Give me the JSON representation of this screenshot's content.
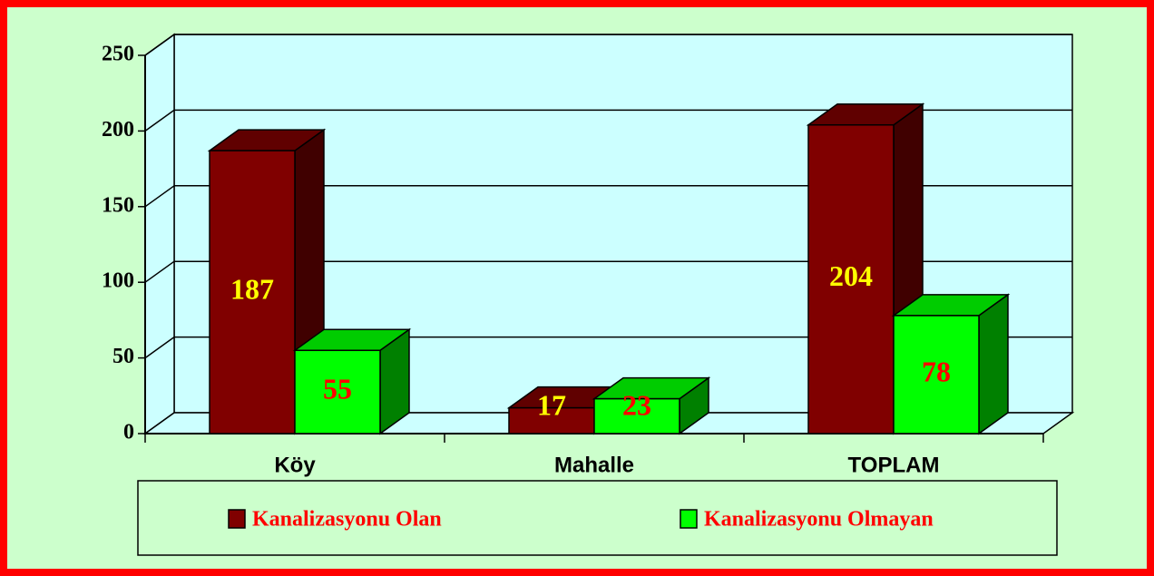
{
  "chart_data": {
    "type": "bar3d",
    "categories": [
      "Köy",
      "Mahalle",
      "TOPLAM"
    ],
    "series": [
      {
        "name": "Kanalizasyonu Olan",
        "color": "#800000",
        "values": [
          187,
          17,
          204
        ]
      },
      {
        "name": "Kanalizasyonu Olmayan",
        "color": "#00ff00",
        "values": [
          55,
          23,
          78
        ]
      }
    ],
    "ylim": [
      0,
      250
    ],
    "yticks": [
      0,
      50,
      100,
      150,
      200,
      250
    ],
    "grid": true
  }
}
